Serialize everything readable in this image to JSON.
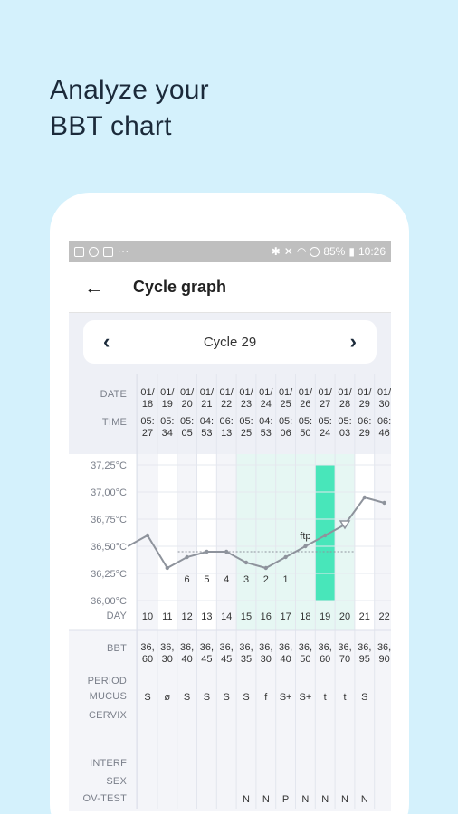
{
  "headline": {
    "line1": "Analyze your",
    "line2": "BBT chart"
  },
  "statusbar": {
    "battery": "85%",
    "time": "10:26",
    "dots": "···"
  },
  "appbar": {
    "back_icon": "arrow-left-icon",
    "title": "Cycle graph"
  },
  "cycle_nav": {
    "prev": "‹",
    "label": "Cycle 29",
    "next": "›"
  },
  "table": {
    "labels": {
      "date": "DATE",
      "time": "TIME",
      "day": "DAY",
      "bbt": "BBT",
      "period": "PERIOD",
      "mucus": "MUCUS",
      "cervix": "CERVIX",
      "interf": "INTERF",
      "sex": "SEX",
      "ov_test": "OV-TEST"
    },
    "dates": [
      [
        "01/",
        "18"
      ],
      [
        "01/",
        "19"
      ],
      [
        "01/",
        "20"
      ],
      [
        "01/",
        "21"
      ],
      [
        "01/",
        "22"
      ],
      [
        "01/",
        "23"
      ],
      [
        "01/",
        "24"
      ],
      [
        "01/",
        "25"
      ],
      [
        "01/",
        "26"
      ],
      [
        "01/",
        "27"
      ],
      [
        "01/",
        "28"
      ],
      [
        "01/",
        "29"
      ],
      [
        "01/",
        "30"
      ]
    ],
    "times": [
      [
        "05:",
        "27"
      ],
      [
        "05:",
        "34"
      ],
      [
        "05:",
        "05"
      ],
      [
        "04:",
        "53"
      ],
      [
        "06:",
        "13"
      ],
      [
        "05:",
        "25"
      ],
      [
        "04:",
        "53"
      ],
      [
        "05:",
        "06"
      ],
      [
        "05:",
        "50"
      ],
      [
        "05:",
        "24"
      ],
      [
        "05:",
        "03"
      ],
      [
        "06:",
        "29"
      ],
      [
        "06:",
        "46"
      ]
    ],
    "days": [
      "10",
      "11",
      "12",
      "13",
      "14",
      "15",
      "16",
      "17",
      "18",
      "19",
      "20",
      "21",
      "22"
    ],
    "bbt": [
      [
        "36,",
        "60"
      ],
      [
        "36,",
        "30"
      ],
      [
        "36,",
        "40"
      ],
      [
        "36,",
        "45"
      ],
      [
        "36,",
        "45"
      ],
      [
        "36,",
        "35"
      ],
      [
        "36,",
        "30"
      ],
      [
        "36,",
        "40"
      ],
      [
        "36,",
        "50"
      ],
      [
        "36,",
        "60"
      ],
      [
        "36,",
        "70"
      ],
      [
        "36,",
        "95"
      ],
      [
        "36,",
        "90"
      ]
    ],
    "mucus": [
      "S",
      "ø",
      "S",
      "S",
      "S",
      "S",
      "f",
      "S+",
      "S+",
      "t",
      "t",
      "S",
      ""
    ],
    "ov_test": [
      "",
      "",
      "",
      "",
      "",
      "N",
      "N",
      "P",
      "N",
      "N",
      "N",
      "N",
      ""
    ]
  },
  "chart_data": {
    "type": "line",
    "y_tick_labels": [
      "37,25°C",
      "37,00°C",
      "36,75°C",
      "36,50°C",
      "36,25°C",
      "36,00°C"
    ],
    "ylim": [
      36.0,
      37.25
    ],
    "x": [
      10,
      11,
      12,
      13,
      14,
      15,
      16,
      17,
      18,
      19,
      20,
      21,
      22
    ],
    "series": [
      {
        "values": [
          36.6,
          36.3,
          36.4,
          36.45,
          36.45,
          36.35,
          36.3,
          36.4,
          36.5,
          36.6,
          36.7,
          36.95,
          36.9
        ]
      }
    ],
    "x_start_day": 9,
    "x_start_value": 36.5,
    "coverline": 36.45,
    "count_labels": [
      {
        "day": 12,
        "text": "6"
      },
      {
        "day": 13,
        "text": "5"
      },
      {
        "day": 14,
        "text": "4"
      },
      {
        "day": 15,
        "text": "3"
      },
      {
        "day": 16,
        "text": "2"
      },
      {
        "day": 17,
        "text": "1"
      }
    ],
    "annotation": {
      "day": 18,
      "text": "ftp"
    },
    "fertile_window_days": [
      15,
      16,
      17,
      18,
      19,
      20
    ],
    "ovulation_day": 19,
    "colors": {
      "line": "#8e939c",
      "fertile": "#e6f7f3",
      "ovulation": "#48e6ba",
      "coverline": "#8e939c",
      "weekday_shade": "#f4f5f9"
    }
  }
}
